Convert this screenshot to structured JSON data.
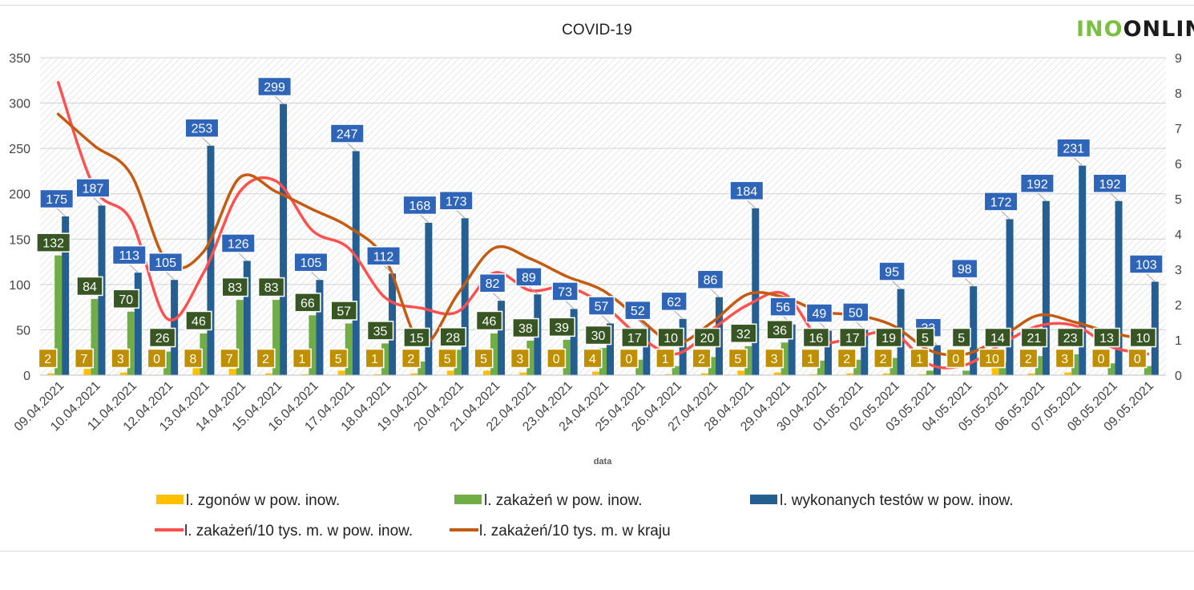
{
  "chart_data": {
    "type": "bar",
    "title": "COVID-19",
    "xlabel": "data",
    "ylabel": "",
    "ylim": [
      0,
      350
    ],
    "y2lim": [
      0,
      9
    ],
    "yticks": [
      "0",
      "50",
      "100",
      "150",
      "200",
      "250",
      "300",
      "350"
    ],
    "y2ticks": [
      "0",
      "1",
      "2",
      "3",
      "4",
      "5",
      "6",
      "7",
      "8",
      "9"
    ],
    "legend_position": "bottom",
    "grid": true,
    "categories": [
      "09.04.2021",
      "10.04.2021",
      "11.04.2021",
      "12.04.2021",
      "13.04.2021",
      "14.04.2021",
      "15.04.2021",
      "16.04.2021",
      "17.04.2021",
      "18.04.2021",
      "19.04.2021",
      "20.04.2021",
      "21.04.2021",
      "22.04.2021",
      "23.04.2021",
      "24.04.2021",
      "25.04.2021",
      "26.04.2021",
      "27.04.2021",
      "28.04.2021",
      "29.04.2021",
      "30.04.2021",
      "01.05.2021",
      "02.05.2021",
      "03.05.2021",
      "04.05.2021",
      "05.05.2021",
      "06.05.2021",
      "07.05.2021",
      "08.05.2021",
      "09.05.2021"
    ],
    "series": [
      {
        "name": "l. zgonów w pow. inow.",
        "kind": "bar",
        "axis": "left",
        "color": "#ffc000",
        "values": [
          2,
          7,
          3,
          0,
          8,
          7,
          2,
          1,
          5,
          1,
          2,
          5,
          5,
          3,
          0,
          4,
          0,
          1,
          2,
          5,
          3,
          1,
          2,
          2,
          1,
          0,
          10,
          2,
          3,
          0,
          0
        ]
      },
      {
        "name": "l. zakażeń w pow. inow.",
        "kind": "bar",
        "axis": "left",
        "color": "#70ad47",
        "values": [
          132,
          84,
          70,
          26,
          46,
          83,
          83,
          66,
          57,
          35,
          15,
          28,
          46,
          38,
          39,
          30,
          17,
          10,
          20,
          32,
          36,
          16,
          17,
          19,
          5,
          5,
          14,
          21,
          23,
          13,
          10
        ]
      },
      {
        "name": "l. wykonanych testów w pow. inow.",
        "kind": "bar",
        "axis": "left",
        "color": "#255e91",
        "values": [
          175,
          187,
          113,
          105,
          253,
          126,
          299,
          105,
          247,
          112,
          168,
          173,
          82,
          89,
          73,
          57,
          52,
          62,
          86,
          184,
          56,
          49,
          50,
          95,
          33,
          98,
          172,
          192,
          231,
          192,
          103
        ]
      },
      {
        "name": "l. zakażeń/10 tys. m. w pow. inow.",
        "kind": "line",
        "axis": "right",
        "color": "#ff5050",
        "values": [
          8.3,
          5.3,
          4.4,
          1.6,
          2.9,
          5.2,
          5.5,
          4.1,
          3.6,
          2.2,
          1.9,
          1.8,
          2.9,
          2.4,
          2.5,
          2.0,
          1.1,
          0.6,
          1.3,
          2.0,
          2.3,
          1.0,
          1.1,
          1.2,
          0.3,
          0.3,
          0.9,
          1.4,
          1.4,
          0.8,
          0.6
        ]
      },
      {
        "name": "l. zakażeń/10 tys. m. w kraju",
        "kind": "line",
        "axis": "right",
        "color": "#c55a11",
        "values": [
          7.4,
          6.5,
          5.7,
          3.2,
          3.5,
          5.6,
          5.2,
          4.7,
          4.2,
          3.3,
          0.9,
          2.3,
          3.6,
          3.3,
          2.8,
          2.4,
          1.6,
          0.9,
          1.5,
          2.3,
          2.2,
          1.8,
          1.7,
          1.4,
          0.7,
          0.6,
          1.1,
          1.7,
          1.5,
          1.2,
          1.0
        ]
      }
    ]
  },
  "logo": {
    "part1": "INO",
    "part2": "ONLINE"
  }
}
